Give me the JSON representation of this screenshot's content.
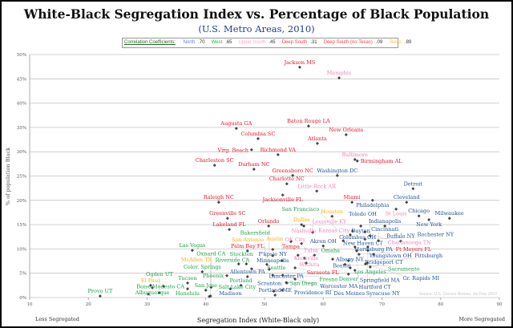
{
  "chart_data": {
    "type": "scatter",
    "title": "White-Black Segregation Index vs. Percentage of Black Population",
    "subtitle": "(U.S. Metro Areas, 2010)",
    "xlabel": "Segregation Index (White-Black only)",
    "ylabel": "% of population Black",
    "x_left_note": "Less Segregated",
    "x_right_note": "More Segregated",
    "source": "Source: U.S. Census Bureau, via Frey 2010",
    "xlim": [
      10,
      90
    ],
    "ylim": [
      0,
      50
    ],
    "xticks": [
      "10",
      "20",
      "30",
      "40",
      "50",
      "60",
      "70",
      "80",
      "90"
    ],
    "yticks": [
      "0%",
      "5%",
      "10%",
      "15%",
      "20%",
      "25%",
      "30%",
      "35%",
      "40%",
      "45%",
      "50%"
    ],
    "grid": "horizontal",
    "legend": {
      "label": "Correlation Coefficients:",
      "entries": [
        {
          "region": "North",
          "value": ".70",
          "color": "#6b7fd6"
        },
        {
          "region": "West",
          "value": ".65",
          "color": "#2bb04e"
        },
        {
          "region": "Upper South",
          "value": ".45",
          "color": "#f7a8cf"
        },
        {
          "region": "Deep South",
          "value": ".31",
          "color": "#ee4455"
        },
        {
          "region": "Deep South (no Texas)",
          "value": ".09",
          "color": "#ee4455"
        },
        {
          "region": "Texas",
          "value": ".89",
          "color": "#f5c040"
        }
      ]
    },
    "region_colors": {
      "North": "#1f4e99",
      "West": "#17a045",
      "Upper South": "#f27fb8",
      "Deep South": "#e8102a",
      "Texas": "#f5ae1c"
    },
    "points": [
      {
        "name": "Jackson MS",
        "region": "Deep South",
        "x": 56.0,
        "y": 47.4
      },
      {
        "name": "Memphis",
        "region": "Upper South",
        "x": 62.7,
        "y": 45.2
      },
      {
        "name": "Augusta GA",
        "region": "Deep South",
        "x": 45.2,
        "y": 34.8
      },
      {
        "name": "Baton Rouge LA",
        "region": "Deep South",
        "x": 57.5,
        "y": 35.3
      },
      {
        "name": "Columbia SC",
        "region": "Deep South",
        "x": 48.9,
        "y": 32.7
      },
      {
        "name": "New Orleans",
        "region": "Deep South",
        "x": 63.9,
        "y": 33.5
      },
      {
        "name": "Atlanta",
        "region": "Deep South",
        "x": 59.0,
        "y": 31.7
      },
      {
        "name": "Virg. Beach",
        "region": "Deep South",
        "x": 47.8,
        "y": 30.4
      },
      {
        "name": "Richmond VA",
        "region": "Deep South",
        "x": 52.3,
        "y": 29.4
      },
      {
        "name": "Baltimore",
        "region": "Upper South",
        "x": 65.4,
        "y": 28.4
      },
      {
        "name": "Birmingham AL",
        "region": "Deep South",
        "x": 65.8,
        "y": 28.1
      },
      {
        "name": "Charleston SC",
        "region": "Deep South",
        "x": 41.5,
        "y": 27.2
      },
      {
        "name": "Durham NC",
        "region": "Deep South",
        "x": 48.2,
        "y": 26.4
      },
      {
        "name": "Greensboro NC",
        "region": "Deep South",
        "x": 54.8,
        "y": 25.1
      },
      {
        "name": "Washington DC",
        "region": "North",
        "x": 62.4,
        "y": 25.1
      },
      {
        "name": "Charlotte NC",
        "region": "Deep South",
        "x": 53.8,
        "y": 23.4
      },
      {
        "name": "Little Rock AR",
        "region": "Upper South",
        "x": 58.9,
        "y": 21.9
      },
      {
        "name": "Jacksonville FL",
        "region": "Deep South",
        "x": 53.1,
        "y": 21.1
      },
      {
        "name": "Detroit",
        "region": "North",
        "x": 75.3,
        "y": 22.4
      },
      {
        "name": "Raleigh NC",
        "region": "Deep South",
        "x": 42.2,
        "y": 19.6
      },
      {
        "name": "Miami",
        "region": "Deep South",
        "x": 64.9,
        "y": 19.6
      },
      {
        "name": "Philadelphia",
        "region": "North",
        "x": 68.4,
        "y": 20.0
      },
      {
        "name": "Cleveland",
        "region": "North",
        "x": 74.2,
        "y": 19.6
      },
      {
        "name": "St Louis",
        "region": "Upper South",
        "x": 72.4,
        "y": 18.2
      },
      {
        "name": "Greenville SC",
        "region": "Deep South",
        "x": 43.7,
        "y": 16.3
      },
      {
        "name": "Houston",
        "region": "Texas",
        "x": 61.5,
        "y": 16.7
      },
      {
        "name": "Chicago",
        "region": "North",
        "x": 76.3,
        "y": 16.8
      },
      {
        "name": "Milwaukee",
        "region": "North",
        "x": 81.5,
        "y": 16.3
      },
      {
        "name": "New York",
        "region": "North",
        "x": 78.0,
        "y": 16.0
      },
      {
        "name": "Orlando",
        "region": "Deep South",
        "x": 50.7,
        "y": 14.7
      },
      {
        "name": "Lakeland FL",
        "region": "Deep South",
        "x": 44.0,
        "y": 14.0
      },
      {
        "name": "Dallas",
        "region": "Texas",
        "x": 56.3,
        "y": 15.0
      },
      {
        "name": "Nashville",
        "region": "Upper South",
        "x": 56.7,
        "y": 14.7
      },
      {
        "name": "Dayton",
        "region": "North",
        "x": 66.4,
        "y": 14.7
      },
      {
        "name": "Indianapolis",
        "region": "North",
        "x": 70.5,
        "y": 14.7
      },
      {
        "name": "Columbus OH",
        "region": "North",
        "x": 65.0,
        "y": 13.7
      },
      {
        "name": "Chattanooga TN",
        "region": "Upper South",
        "x": 67.1,
        "y": 13.5
      },
      {
        "name": "Louisville KY",
        "region": "Upper South",
        "x": 58.2,
        "y": 13.4
      },
      {
        "name": "New Haven CT",
        "region": "North",
        "x": 64.6,
        "y": 12.9
      },
      {
        "name": "Kansas City",
        "region": "Upper South",
        "x": 63.4,
        "y": 11.7
      },
      {
        "name": "Rochester NY",
        "region": "North",
        "x": 67.1,
        "y": 12.0
      },
      {
        "name": "Toledo OH",
        "region": "North",
        "x": 68.0,
        "y": 12.7
      },
      {
        "name": "Cincinnati",
        "region": "North",
        "x": 69.4,
        "y": 11.7
      },
      {
        "name": "Buffalo NY",
        "region": "North",
        "x": 73.2,
        "y": 11.6
      },
      {
        "name": "Tampa",
        "region": "Deep South",
        "x": 54.5,
        "y": 11.5
      },
      {
        "name": "Akron OH",
        "region": "North",
        "x": 60.0,
        "y": 10.6
      },
      {
        "name": "OK City",
        "region": "Upper South",
        "x": 56.3,
        "y": 11.1
      },
      {
        "name": "Youngstown OH",
        "region": "North",
        "x": 67.6,
        "y": 10.4
      },
      {
        "name": "Bridgeport CT",
        "region": "North",
        "x": 67.6,
        "y": 9.7
      },
      {
        "name": "San Francisco",
        "region": "West",
        "x": 65.4,
        "y": 10.4
      },
      {
        "name": "Hartford CT",
        "region": "North",
        "x": 65.7,
        "y": 9.6
      },
      {
        "name": "Harrisburg PA",
        "region": "North",
        "x": 68.6,
        "y": 8.9
      },
      {
        "name": "Ft Meyers FL",
        "region": "Deep South",
        "x": 66.1,
        "y": 8.9
      },
      {
        "name": "Pittsburgh",
        "region": "North",
        "x": 64.3,
        "y": 7.6
      },
      {
        "name": "Albany NY",
        "region": "North",
        "x": 61.6,
        "y": 7.9
      },
      {
        "name": "Gr. Rapids MI",
        "region": "North",
        "x": 67.2,
        "y": 6.9
      },
      {
        "name": "Syracuse NY",
        "region": "North",
        "x": 67.5,
        "y": 7.1
      },
      {
        "name": "Los Angeles",
        "region": "West",
        "x": 68.0,
        "y": 6.3
      },
      {
        "name": "Boston",
        "region": "North",
        "x": 64.6,
        "y": 6.1
      },
      {
        "name": "Springfield MA",
        "region": "North",
        "x": 65.4,
        "y": 5.6
      },
      {
        "name": "Denver",
        "region": "West",
        "x": 64.3,
        "y": 4.8
      },
      {
        "name": "Omaha",
        "region": "West",
        "x": 58.5,
        "y": 8.7
      },
      {
        "name": "Tulsa",
        "region": "Upper South",
        "x": 55.7,
        "y": 8.7
      },
      {
        "name": "Wichita",
        "region": "Upper South",
        "x": 56.8,
        "y": 8.1
      },
      {
        "name": "Minneapolis",
        "region": "North",
        "x": 51.4,
        "y": 8.6
      },
      {
        "name": "Austin",
        "region": "Texas",
        "x": 53.0,
        "y": 7.6
      },
      {
        "name": "San Antonio",
        "region": "Texas",
        "x": 50.4,
        "y": 6.8
      },
      {
        "name": "Knoxville",
        "region": "Upper South",
        "x": 57.1,
        "y": 7.1
      },
      {
        "name": "Sacramento",
        "region": "West",
        "x": 63.7,
        "y": 6.8
      },
      {
        "name": "Sarasota FL",
        "region": "Deep South",
        "x": 55.2,
        "y": 6.1
      },
      {
        "name": "Bakersfield",
        "region": "West",
        "x": 50.8,
        "y": 5.8
      },
      {
        "name": "Stockton",
        "region": "West",
        "x": 46.9,
        "y": 6.9
      },
      {
        "name": "Riverside CA",
        "region": "West",
        "x": 45.6,
        "y": 6.9
      },
      {
        "name": "Seattle",
        "region": "West",
        "x": 47.8,
        "y": 5.9
      },
      {
        "name": "Allentown PA",
        "region": "North",
        "x": 47.1,
        "y": 4.3
      },
      {
        "name": "Phoenix",
        "region": "West",
        "x": 43.6,
        "y": 4.5
      },
      {
        "name": "Portland",
        "region": "West",
        "x": 46.0,
        "y": 2.5
      },
      {
        "name": "Madison",
        "region": "North",
        "x": 44.2,
        "y": 1.8
      },
      {
        "name": "Fresno",
        "region": "West",
        "x": 51.4,
        "y": 4.6
      },
      {
        "name": "San Diego",
        "region": "West",
        "x": 53.8,
        "y": 3.0
      },
      {
        "name": "Des Moines",
        "region": "North",
        "x": 53.1,
        "y": 4.6
      },
      {
        "name": "Providence RI",
        "region": "North",
        "x": 55.2,
        "y": 3.8
      },
      {
        "name": "Worcester MA",
        "region": "North",
        "x": 53.7,
        "y": 3.1
      },
      {
        "name": "Lancaster PA",
        "region": "North",
        "x": 53.0,
        "y": 1.5
      },
      {
        "name": "Scranton",
        "region": "North",
        "x": 51.6,
        "y": 1.3
      },
      {
        "name": "Portland ME",
        "region": "North",
        "x": 51.8,
        "y": 0.5
      },
      {
        "name": "Color. Springs",
        "region": "West",
        "x": 39.4,
        "y": 5.3
      },
      {
        "name": "Las Vegas",
        "region": "West",
        "x": 37.7,
        "y": 9.7
      },
      {
        "name": "Palm Bay FL",
        "region": "Deep South",
        "x": 47.1,
        "y": 9.6
      },
      {
        "name": "P'kpsie NY",
        "region": "North",
        "x": 51.4,
        "y": 9.9
      },
      {
        "name": "Tucson",
        "region": "West",
        "x": 36.9,
        "y": 3.0
      },
      {
        "name": "Honolulu",
        "region": "West",
        "x": 36.9,
        "y": 1.8
      },
      {
        "name": "San Jose",
        "region": "West",
        "x": 40.0,
        "y": 1.5
      },
      {
        "name": "Oxnard CA",
        "region": "West",
        "x": 40.9,
        "y": 2.1
      },
      {
        "name": "Salt Lake City",
        "region": "West",
        "x": 40.6,
        "y": 0.2
      },
      {
        "name": "McAllen TX",
        "region": "Texas",
        "x": 40.8,
        "y": 0.3
      },
      {
        "name": "Provo UT",
        "region": "West",
        "x": 22.0,
        "y": 0.3
      },
      {
        "name": "El Paso",
        "region": "Texas",
        "x": 30.6,
        "y": 2.5
      },
      {
        "name": "Albuquerque",
        "region": "West",
        "x": 30.9,
        "y": 2.0
      },
      {
        "name": "Modesto CA",
        "region": "West",
        "x": 32.8,
        "y": 2.3
      },
      {
        "name": "Boise",
        "region": "West",
        "x": 30.2,
        "y": 0.7
      },
      {
        "name": "Ogden UT",
        "region": "West",
        "x": 32.1,
        "y": 1.0
      }
    ]
  }
}
